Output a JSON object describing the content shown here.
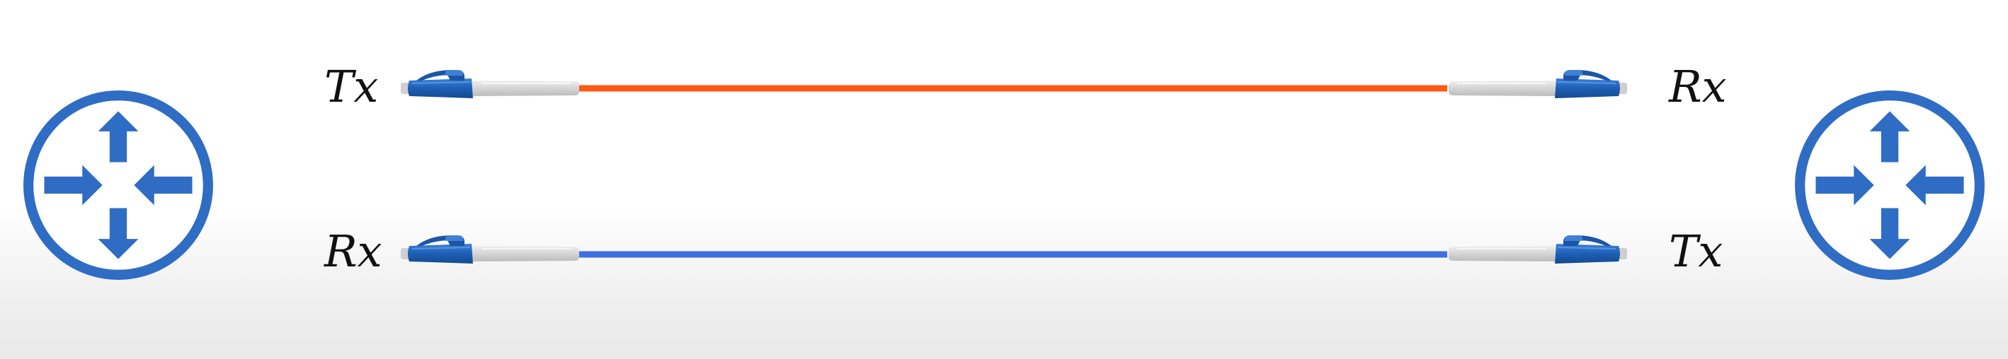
{
  "diagram": {
    "links": [
      {
        "left_label": "Tx",
        "right_label": "Rx",
        "color": "#ff5a14"
      },
      {
        "left_label": "Rx",
        "right_label": "Tx",
        "color": "#3d6fe0"
      }
    ],
    "router_icon": {
      "name": "router-icon",
      "color": "#2f6cc4"
    },
    "connector": {
      "name": "lc-fiber-connector",
      "body_color": "#1e5fb4",
      "boot_color": "#d8d8d8"
    }
  }
}
